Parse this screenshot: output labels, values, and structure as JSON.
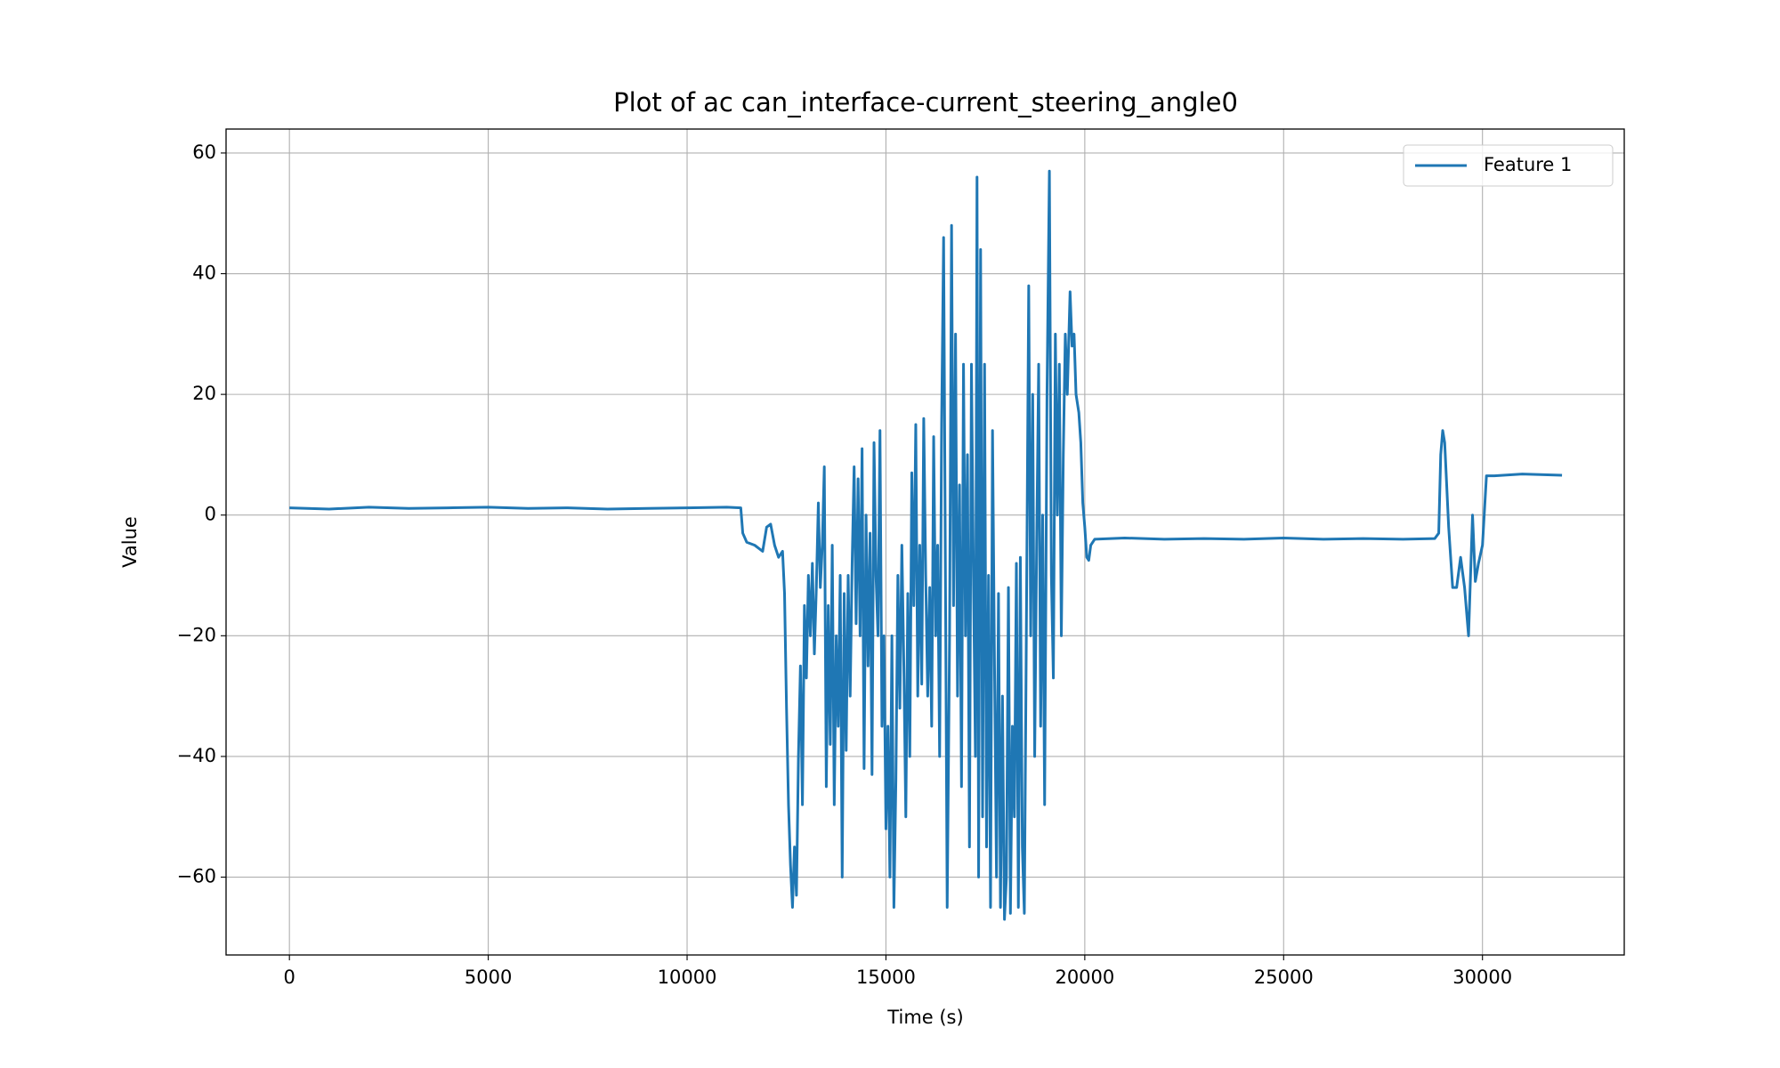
{
  "chart_data": {
    "type": "line",
    "title": "Plot of ac can_interface-current_steering_angle0",
    "x_label": "Time (s)",
    "y_label": "Value",
    "x": [
      0,
      1000,
      2000,
      3000,
      4000,
      5000,
      6000,
      7000,
      8000,
      9000,
      10000,
      11000,
      11350,
      11400,
      11500,
      11700,
      11900,
      12000,
      12100,
      12200,
      12300,
      12400,
      12450,
      12500,
      12550,
      12600,
      12650,
      12700,
      12750,
      12800,
      12850,
      12900,
      12950,
      13000,
      13050,
      13100,
      13150,
      13200,
      13250,
      13300,
      13350,
      13400,
      13450,
      13500,
      13550,
      13600,
      13650,
      13700,
      13750,
      13800,
      13850,
      13900,
      13950,
      14000,
      14050,
      14100,
      14150,
      14200,
      14250,
      14300,
      14350,
      14400,
      14450,
      14500,
      14550,
      14600,
      14650,
      14700,
      14750,
      14800,
      14850,
      14900,
      14950,
      15000,
      15050,
      15100,
      15150,
      15200,
      15250,
      15300,
      15350,
      15400,
      15450,
      15500,
      15550,
      15600,
      15650,
      15700,
      15750,
      15800,
      15850,
      15900,
      15950,
      16000,
      16050,
      16100,
      16150,
      16200,
      16250,
      16300,
      16350,
      16400,
      16450,
      16500,
      16540,
      16600,
      16650,
      16700,
      16750,
      16800,
      16850,
      16900,
      16950,
      17000,
      17050,
      17100,
      17150,
      17200,
      17250,
      17290,
      17330,
      17380,
      17430,
      17480,
      17530,
      17580,
      17630,
      17680,
      17730,
      17780,
      17830,
      17880,
      17930,
      17980,
      18030,
      18080,
      18130,
      18180,
      18230,
      18280,
      18330,
      18380,
      18430,
      18480,
      18530,
      18590,
      18640,
      18690,
      18740,
      18790,
      18840,
      18890,
      18940,
      18990,
      19050,
      19110,
      19160,
      19210,
      19260,
      19310,
      19360,
      19410,
      19460,
      19510,
      19560,
      19630,
      19680,
      19730,
      19780,
      19850,
      19900,
      19950,
      20000,
      20050,
      20100,
      20150,
      20250,
      21000,
      22000,
      23000,
      24000,
      25000,
      26000,
      27000,
      28000,
      28800,
      28900,
      28950,
      29000,
      29050,
      29150,
      29250,
      29350,
      29450,
      29550,
      29650,
      29750,
      29820,
      29900,
      30000,
      30100,
      30300,
      31000,
      32000
    ],
    "series": [
      {
        "name": "Feature 1",
        "color": "#1f77b4",
        "values": [
          1.2,
          1.0,
          1.3,
          1.1,
          1.2,
          1.3,
          1.1,
          1.2,
          1.0,
          1.1,
          1.2,
          1.3,
          1.2,
          -3,
          -4.5,
          -5,
          -6,
          -2,
          -1.5,
          -5,
          -7,
          -6,
          -13,
          -32,
          -48,
          -58,
          -65,
          -55,
          -63,
          -40,
          -25,
          -48,
          -15,
          -27,
          -10,
          -20,
          -8,
          -23,
          -12,
          2,
          -12,
          -5,
          8,
          -45,
          -15,
          -38,
          -5,
          -48,
          -20,
          -35,
          -10,
          -60,
          -13,
          -39,
          -10,
          -30,
          -8,
          8,
          -18,
          6,
          -20,
          11,
          -42,
          0,
          -25,
          -3,
          -43,
          12,
          -10,
          -20,
          14,
          -35,
          -20,
          -52,
          -35,
          -60,
          -20,
          -65,
          -44,
          -10,
          -32,
          -5,
          -25,
          -50,
          -13,
          -40,
          7,
          -15,
          15,
          -30,
          -5,
          -28,
          16,
          -10,
          -30,
          -12,
          -35,
          13,
          -20,
          -5,
          -40,
          15,
          46,
          -15,
          -65,
          -20,
          48,
          -15,
          30,
          -30,
          5,
          -45,
          25,
          -20,
          10,
          -55,
          25,
          -10,
          -40,
          56,
          -60,
          44,
          -50,
          25,
          -55,
          -10,
          -65,
          14,
          -25,
          -60,
          -13,
          -65,
          -30,
          -67,
          -60,
          -12,
          -66,
          -35,
          -50,
          -8,
          -65,
          -7,
          -55,
          -66,
          -20,
          38,
          -20,
          20,
          -40,
          -5,
          25,
          -35,
          0,
          -48,
          20,
          57,
          -10,
          -27,
          30,
          0,
          25,
          -20,
          10,
          30,
          20,
          37,
          28,
          30,
          20,
          17,
          12,
          2,
          -2,
          -7,
          -7.5,
          -5,
          -4,
          -3.8,
          -4,
          -3.9,
          -4,
          -3.8,
          -4,
          -3.9,
          -4,
          -3.9,
          -3,
          10,
          14,
          12,
          -2,
          -12,
          -12,
          -7,
          -12,
          -20,
          0,
          -11,
          -8,
          -5,
          6.5,
          6.5,
          6.8,
          6.6
        ]
      }
    ],
    "xlim": [
      -1593,
      33565
    ],
    "ylim": [
      -72.9,
      63.97
    ],
    "xticks": [
      0,
      5000,
      10000,
      15000,
      20000,
      25000,
      30000
    ],
    "yticks": [
      {
        "value": -60,
        "label": "−60"
      },
      {
        "value": -40,
        "label": "−40"
      },
      {
        "value": -20,
        "label": "−20"
      },
      0,
      20,
      40,
      60
    ],
    "grid": true,
    "legend": "upper right"
  }
}
